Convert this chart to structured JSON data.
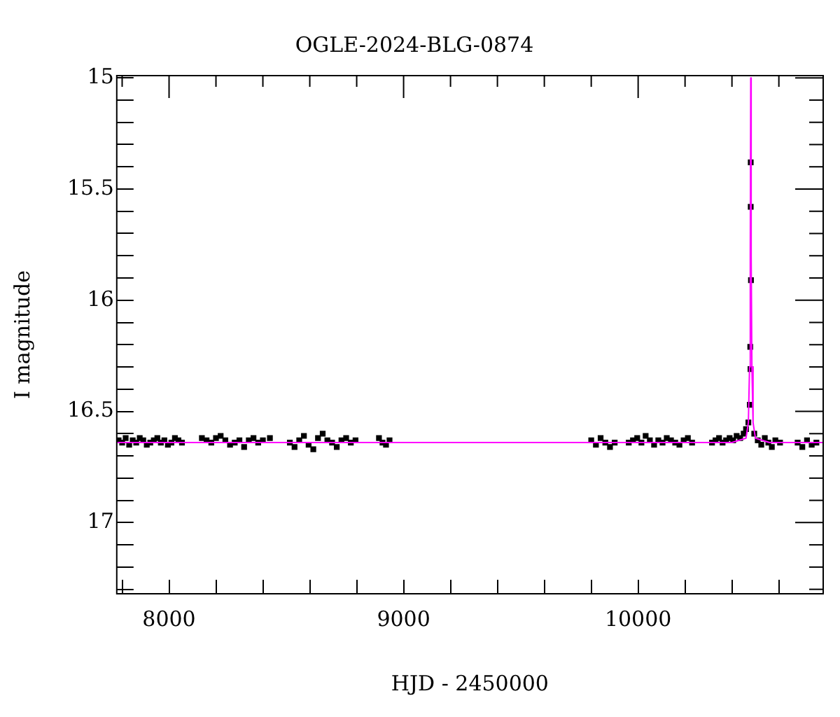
{
  "chart_data": {
    "type": "scatter",
    "title": "OGLE-2024-BLG-0874",
    "xlabel": "HJD - 2450000",
    "ylabel": "I magnitude",
    "xlim": [
      7777,
      10789
    ],
    "ylim": [
      17.32,
      14.99
    ],
    "xticks": [
      {
        "value": 7800,
        "label": null
      },
      8000,
      {
        "value": 8200,
        "label": null
      },
      {
        "value": 8400,
        "label": null
      },
      {
        "value": 8600,
        "label": null
      },
      {
        "value": 8800,
        "label": null
      },
      9000,
      {
        "value": 9200,
        "label": null
      },
      {
        "value": 9400,
        "label": null
      },
      {
        "value": 9600,
        "label": null
      },
      {
        "value": 9800,
        "label": null
      },
      10000,
      {
        "value": 10200,
        "label": null
      },
      {
        "value": 10400,
        "label": null
      },
      {
        "value": 10600,
        "label": null
      }
    ],
    "yticks": [
      15,
      {
        "value": 15.1,
        "label": null
      },
      {
        "value": 15.2,
        "label": null
      },
      {
        "value": 15.3,
        "label": null
      },
      {
        "value": 15.4,
        "label": null
      },
      15.5,
      {
        "value": 15.6,
        "label": null
      },
      {
        "value": 15.7,
        "label": null
      },
      {
        "value": 15.8,
        "label": null
      },
      {
        "value": 15.9,
        "label": null
      },
      16,
      {
        "value": 16.1,
        "label": null
      },
      {
        "value": 16.2,
        "label": null
      },
      {
        "value": 16.3,
        "label": null
      },
      {
        "value": 16.4,
        "label": null
      },
      16.5,
      {
        "value": 16.6,
        "label": null
      },
      {
        "value": 16.7,
        "label": null
      },
      {
        "value": 16.8,
        "label": null
      },
      {
        "value": 16.9,
        "label": null
      },
      17,
      {
        "value": 17.1,
        "label": null
      },
      {
        "value": 17.2,
        "label": null
      },
      {
        "value": 17.3,
        "label": null
      }
    ],
    "grid": false,
    "legend": false,
    "marker": "square",
    "series": [
      {
        "type": "line",
        "color": "#ff00ff",
        "marker": "none",
        "x": [
          7777,
          10400,
          10460,
          10470,
          10475,
          10478,
          10480,
          10482,
          10485,
          10490,
          10500,
          10560,
          10789
        ],
        "values": [
          16.64,
          16.64,
          16.62,
          16.55,
          16.3,
          15.8,
          15.0,
          15.8,
          16.3,
          16.55,
          16.62,
          16.64,
          16.64
        ]
      },
      {
        "color": "#000000",
        "x": [
          7785,
          7800,
          7815,
          7830,
          7845,
          7860,
          7875,
          7890,
          7905,
          7920,
          7935,
          7950,
          7965,
          7980,
          7995,
          8010,
          8025,
          8040,
          8055,
          8140,
          8160,
          8180,
          8200,
          8220,
          8240,
          8260,
          8280,
          8300,
          8320,
          8340,
          8360,
          8380,
          8400,
          8430,
          8515,
          8535,
          8555,
          8575,
          8595,
          8615,
          8635,
          8655,
          8675,
          8695,
          8715,
          8735,
          8755,
          8775,
          8795,
          8895,
          8910,
          8925,
          8940,
          9800,
          9820,
          9840,
          9860,
          9880,
          9900,
          9960,
          9978,
          9996,
          10014,
          10032,
          10050,
          10068,
          10086,
          10104,
          10122,
          10140,
          10158,
          10176,
          10194,
          10212,
          10230,
          10315,
          10330,
          10345,
          10360,
          10375,
          10390,
          10405,
          10420,
          10435,
          10450,
          10460,
          10470,
          10476,
          10479,
          10478,
          10481,
          10480,
          10480,
          10495,
          10510,
          10525,
          10540,
          10555,
          10570,
          10585,
          10605,
          10680,
          10700,
          10720,
          10740,
          10760
        ],
        "values": [
          16.63,
          16.64,
          16.62,
          16.65,
          16.63,
          16.64,
          16.62,
          16.63,
          16.65,
          16.64,
          16.63,
          16.62,
          16.64,
          16.63,
          16.65,
          16.64,
          16.62,
          16.63,
          16.64,
          16.62,
          16.63,
          16.64,
          16.62,
          16.61,
          16.63,
          16.65,
          16.64,
          16.63,
          16.66,
          16.63,
          16.62,
          16.64,
          16.63,
          16.62,
          16.64,
          16.66,
          16.63,
          16.61,
          16.65,
          16.67,
          16.62,
          16.6,
          16.63,
          16.64,
          16.66,
          16.63,
          16.62,
          16.64,
          16.63,
          16.62,
          16.64,
          16.65,
          16.63,
          16.63,
          16.65,
          16.62,
          16.64,
          16.66,
          16.64,
          16.64,
          16.63,
          16.62,
          16.64,
          16.61,
          16.63,
          16.65,
          16.63,
          16.64,
          16.62,
          16.63,
          16.64,
          16.65,
          16.63,
          16.62,
          16.64,
          16.64,
          16.63,
          16.62,
          16.64,
          16.63,
          16.62,
          16.63,
          16.61,
          16.62,
          16.6,
          16.58,
          16.55,
          16.47,
          16.31,
          16.21,
          15.91,
          15.58,
          15.38,
          16.6,
          16.63,
          16.65,
          16.62,
          16.64,
          16.66,
          16.63,
          16.64,
          16.64,
          16.66,
          16.63,
          16.65,
          16.64
        ]
      }
    ]
  }
}
